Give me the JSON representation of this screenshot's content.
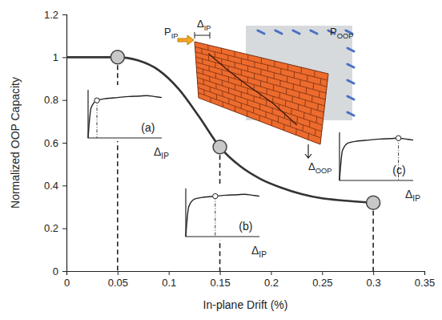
{
  "chart_data": {
    "type": "line",
    "x_label": "In-plane Drift (%)",
    "y_label": "Normalized OOP Capacity",
    "xlim": [
      0,
      0.35
    ],
    "ylim": [
      0,
      1.2
    ],
    "xticks": [
      0,
      0.05,
      0.1,
      0.15,
      0.2,
      0.25,
      0.3,
      0.35
    ],
    "yticks": [
      0,
      0.2,
      0.4,
      0.6,
      0.8,
      1,
      1.2
    ],
    "grid": false,
    "series": [
      {
        "x": [
          0,
          0.02,
          0.05,
          0.07,
          0.09,
          0.11,
          0.13,
          0.15,
          0.17,
          0.19,
          0.21,
          0.23,
          0.25,
          0.27,
          0.3
        ],
        "values": [
          1,
          1,
          1,
          0.985,
          0.94,
          0.85,
          0.72,
          0.58,
          0.49,
          0.43,
          0.39,
          0.36,
          0.34,
          0.33,
          0.32
        ],
        "color": "#333333"
      }
    ],
    "highlights": {
      "x": [
        0.05,
        0.15,
        0.3
      ],
      "values": [
        1,
        0.58,
        0.32
      ],
      "color": "#c8c8c8"
    },
    "insets": [
      {
        "label": "(a)",
        "axis_label": {
          "main": "Δ",
          "sub": "IP"
        },
        "xlim": [
          0,
          1
        ],
        "ylim": [
          0,
          1
        ],
        "x": [
          0,
          0.04,
          0.12,
          0.25,
          0.4,
          0.55,
          0.7,
          0.8,
          0.9,
          1
        ],
        "values": [
          0,
          0.62,
          0.78,
          0.82,
          0.84,
          0.86,
          0.87,
          0.88,
          0.86,
          0.84
        ],
        "point_index": 2
      },
      {
        "label": "(b)",
        "axis_label": {
          "main": "Δ",
          "sub": "IP"
        },
        "xlim": [
          0,
          1
        ],
        "ylim": [
          0,
          1
        ],
        "x": [
          0,
          0.04,
          0.12,
          0.25,
          0.4,
          0.55,
          0.7,
          0.8,
          0.9,
          1
        ],
        "values": [
          0,
          0.62,
          0.78,
          0.82,
          0.84,
          0.86,
          0.87,
          0.88,
          0.86,
          0.84
        ],
        "point_index": 4
      },
      {
        "label": "(c)",
        "axis_label": {
          "main": "Δ",
          "sub": "IP"
        },
        "xlim": [
          0,
          1
        ],
        "ylim": [
          0,
          1
        ],
        "x": [
          0,
          0.04,
          0.12,
          0.25,
          0.4,
          0.55,
          0.7,
          0.8,
          0.9,
          1
        ],
        "values": [
          0,
          0.62,
          0.78,
          0.82,
          0.84,
          0.86,
          0.87,
          0.88,
          0.86,
          0.84
        ],
        "point_index": 7
      }
    ],
    "annotations": [
      {
        "main": "P",
        "sub": "IP"
      },
      {
        "main": "Δ",
        "sub": "IP"
      },
      {
        "main": "P",
        "sub": "OOP"
      },
      {
        "main": "Δ",
        "sub": "OOP"
      }
    ]
  }
}
